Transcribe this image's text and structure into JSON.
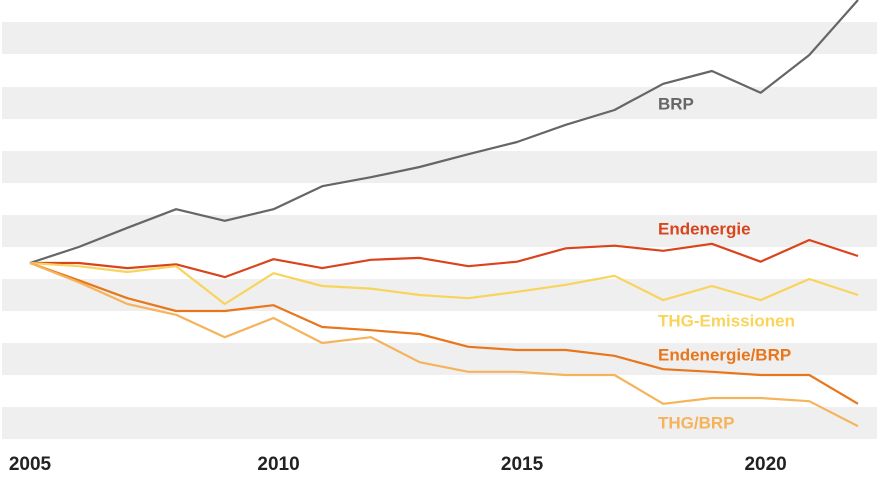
{
  "chart_data": {
    "type": "line",
    "categories": [
      "2005",
      null,
      null,
      null,
      null,
      "2010",
      null,
      null,
      null,
      null,
      "2015",
      null,
      null,
      null,
      null,
      "2020",
      null,
      null
    ],
    "series": [
      {
        "name": "BRP",
        "color": "#666666",
        "values": [
          100,
          102.5,
          105.5,
          108.4,
          106.6,
          108.4,
          112.0,
          113.4,
          115.0,
          117.0,
          118.9,
          121.6,
          123.9,
          128.0,
          130.0,
          126.6,
          132.5,
          141.1
        ]
      },
      {
        "name": "Endenergie",
        "color": "#d9441c",
        "values": [
          100,
          100,
          99.2,
          99.8,
          97.8,
          100.6,
          99.2,
          100.5,
          100.8,
          99.5,
          100.2,
          102.3,
          102.7,
          101.9,
          103.0,
          100.2,
          103.6,
          101.1
        ]
      },
      {
        "name": "THG-Emissionen",
        "color": "#f9d45c",
        "values": [
          100,
          99.5,
          98.6,
          99.5,
          93.6,
          98.4,
          96.4,
          96.0,
          95.0,
          94.5,
          95.5,
          96.6,
          98.0,
          94.2,
          96.4,
          94.2,
          97.5,
          95.0
        ]
      },
      {
        "name": "Endenergie/BRP",
        "color": "#e8761c",
        "values": [
          100,
          97.3,
          94.5,
          92.5,
          92.5,
          93.4,
          90.0,
          89.5,
          88.9,
          86.9,
          86.4,
          86.4,
          85.5,
          83.4,
          83.0,
          82.5,
          82.5,
          78.0
        ]
      },
      {
        "name": "THG/BRP",
        "color": "#f5b35c",
        "values": [
          100,
          97.0,
          93.6,
          91.9,
          88.4,
          91.4,
          87.5,
          88.4,
          84.5,
          83.0,
          83.0,
          82.5,
          82.5,
          78.0,
          78.9,
          78.9,
          78.4,
          74.5
        ]
      }
    ],
    "ylim": [
      70,
      145
    ]
  }
}
